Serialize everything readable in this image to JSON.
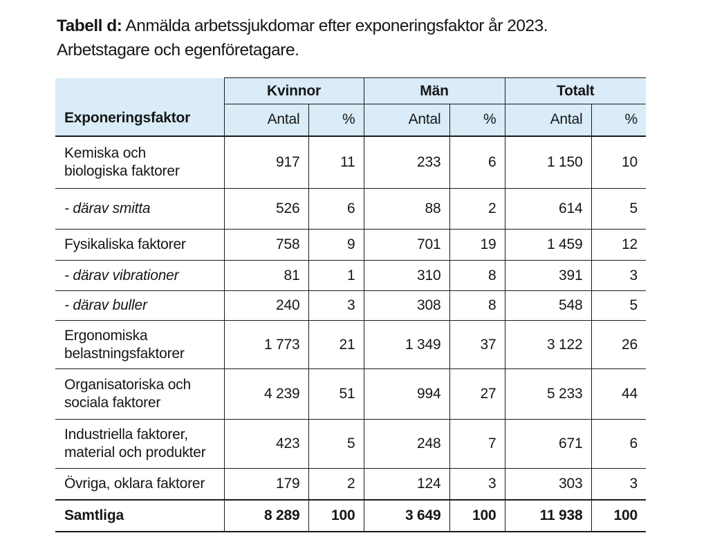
{
  "title": {
    "prefix": "Tabell d:",
    "line1_rest": " Anmälda arbetssjukdomar efter exponeringsfaktor år 2023.",
    "line2": "Arbetstagare och egenföretagare."
  },
  "table": {
    "corner_header": "Exponeringsfaktor",
    "groups": [
      "Kvinnor",
      "Män",
      "Totalt"
    ],
    "subheaders": {
      "antal": "Antal",
      "percent": "%"
    },
    "rows": [
      {
        "label_lines": [
          "Kemiska och",
          "biologiska faktorer"
        ],
        "style": "normal",
        "values": [
          "917",
          "11",
          "233",
          "6",
          "1 150",
          "10"
        ]
      },
      {
        "label_lines": [
          "- därav smitta"
        ],
        "style": "italic",
        "values": [
          "526",
          "6",
          "88",
          "2",
          "614",
          "5"
        ]
      },
      {
        "label_lines": [
          "Fysikaliska faktorer"
        ],
        "style": "normal",
        "values": [
          "758",
          "9",
          "701",
          "19",
          "1 459",
          "12"
        ]
      },
      {
        "label_lines": [
          "- därav vibrationer"
        ],
        "style": "italic",
        "values": [
          "81",
          "1",
          "310",
          "8",
          "391",
          "3"
        ]
      },
      {
        "label_lines": [
          "- därav buller"
        ],
        "style": "italic",
        "values": [
          "240",
          "3",
          "308",
          "8",
          "548",
          "5"
        ]
      },
      {
        "label_lines": [
          "Ergonomiska",
          "belastningsfaktorer"
        ],
        "style": "normal",
        "values": [
          "1 773",
          "21",
          "1 349",
          "37",
          "3 122",
          "26"
        ]
      },
      {
        "label_lines": [
          "Organisatoriska och",
          "sociala faktorer"
        ],
        "style": "normal",
        "values": [
          "4 239",
          "51",
          "994",
          "27",
          "5 233",
          "44"
        ]
      },
      {
        "label_lines": [
          "Industriella faktorer,",
          "material och produkter"
        ],
        "style": "normal",
        "values": [
          "423",
          "5",
          "248",
          "7",
          "671",
          "6"
        ]
      },
      {
        "label_lines": [
          "Övriga, oklara faktorer"
        ],
        "style": "normal",
        "values": [
          "179",
          "2",
          "124",
          "3",
          "303",
          "3"
        ]
      },
      {
        "label_lines": [
          "Samtliga"
        ],
        "style": "bold",
        "values": [
          "8 289",
          "100",
          "3 649",
          "100",
          "11 938",
          "100"
        ]
      }
    ],
    "colors": {
      "header_bg": "#d9ecf8",
      "border": "#1a1a1a"
    }
  }
}
